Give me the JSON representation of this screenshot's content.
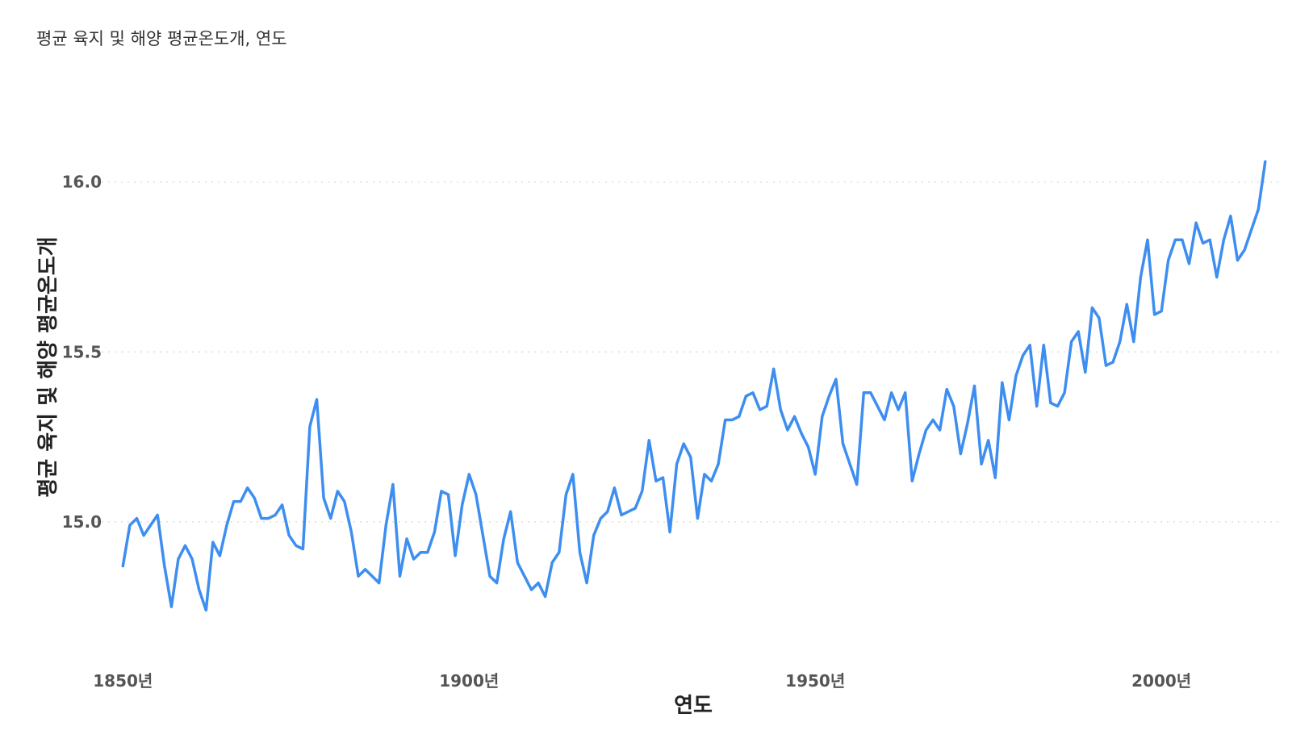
{
  "chart_data": {
    "type": "line",
    "title": "평균 육지 및 해양 평균온도개, 연도",
    "xlabel": "연도",
    "ylabel": "평균 육지 및 해양 평균온도개",
    "x_ticks": [
      {
        "value": 1850,
        "label": "1850년"
      },
      {
        "value": 1900,
        "label": "1900년"
      },
      {
        "value": 1950,
        "label": "1950년"
      },
      {
        "value": 2000,
        "label": "2000년"
      }
    ],
    "y_ticks": [
      {
        "value": 15.0,
        "label": "15.0"
      },
      {
        "value": 15.5,
        "label": "15.5"
      },
      {
        "value": 16.0,
        "label": "16.0"
      }
    ],
    "xlim": [
      1846,
      2017
    ],
    "ylim": [
      14.66,
      16.27
    ],
    "grid": "horizontal dotted",
    "line_color": "#3d8ef0",
    "series": [
      {
        "x": [
          1850,
          1851,
          1852,
          1853,
          1854,
          1855,
          1856,
          1857,
          1858,
          1859,
          1860,
          1861,
          1862,
          1863,
          1864,
          1865,
          1866,
          1867,
          1868,
          1869,
          1870,
          1871,
          1872,
          1873,
          1874,
          1875,
          1876,
          1877,
          1878,
          1879,
          1880,
          1881,
          1882,
          1883,
          1884,
          1885,
          1886,
          1887,
          1888,
          1889,
          1890,
          1891,
          1892,
          1893,
          1894,
          1895,
          1896,
          1897,
          1898,
          1899,
          1900,
          1901,
          1902,
          1903,
          1904,
          1905,
          1906,
          1907,
          1908,
          1909,
          1910,
          1911,
          1912,
          1913,
          1914,
          1915,
          1916,
          1917,
          1918,
          1919,
          1920,
          1921,
          1922,
          1923,
          1924,
          1925,
          1926,
          1927,
          1928,
          1929,
          1930,
          1931,
          1932,
          1933,
          1934,
          1935,
          1936,
          1937,
          1938,
          1939,
          1940,
          1941,
          1942,
          1943,
          1944,
          1945,
          1946,
          1947,
          1948,
          1949,
          1950,
          1951,
          1952,
          1953,
          1954,
          1955,
          1956,
          1957,
          1958,
          1959,
          1960,
          1961,
          1962,
          1963,
          1964,
          1965,
          1966,
          1967,
          1968,
          1969,
          1970,
          1971,
          1972,
          1973,
          1974,
          1975,
          1976,
          1977,
          1978,
          1979,
          1980,
          1981,
          1982,
          1983,
          1984,
          1985,
          1986,
          1987,
          1988,
          1989,
          1990,
          1991,
          1992,
          1993,
          1994,
          1995,
          1996,
          1997,
          1998,
          1999,
          2000,
          2001,
          2002,
          2003,
          2004,
          2005,
          2006,
          2007,
          2008,
          2009,
          2010,
          2011,
          2012,
          2013,
          2014,
          2015
        ],
        "values": [
          14.87,
          14.99,
          15.01,
          14.96,
          14.99,
          15.02,
          14.87,
          14.75,
          14.89,
          14.93,
          14.89,
          14.8,
          14.74,
          14.94,
          14.9,
          14.99,
          15.06,
          15.06,
          15.1,
          15.07,
          15.01,
          15.01,
          15.02,
          15.05,
          14.96,
          14.93,
          14.92,
          15.28,
          15.36,
          15.07,
          15.01,
          15.09,
          15.06,
          14.97,
          14.84,
          14.86,
          14.84,
          14.82,
          14.99,
          15.11,
          14.84,
          14.95,
          14.89,
          14.91,
          14.91,
          14.97,
          15.09,
          15.08,
          14.9,
          15.05,
          15.14,
          15.08,
          14.96,
          14.84,
          14.82,
          14.95,
          15.03,
          14.88,
          14.84,
          14.8,
          14.82,
          14.78,
          14.88,
          14.91,
          15.08,
          15.14,
          14.91,
          14.82,
          14.96,
          15.01,
          15.03,
          15.1,
          15.02,
          15.03,
          15.04,
          15.09,
          15.24,
          15.12,
          15.13,
          14.97,
          15.17,
          15.23,
          15.19,
          15.01,
          15.14,
          15.12,
          15.17,
          15.3,
          15.3,
          15.31,
          15.37,
          15.38,
          15.33,
          15.34,
          15.45,
          15.33,
          15.27,
          15.31,
          15.26,
          15.22,
          15.14,
          15.31,
          15.37,
          15.42,
          15.23,
          15.17,
          15.11,
          15.38,
          15.38,
          15.34,
          15.3,
          15.38,
          15.33,
          15.38,
          15.12,
          15.2,
          15.27,
          15.3,
          15.27,
          15.39,
          15.34,
          15.2,
          15.29,
          15.4,
          15.17,
          15.24,
          15.13,
          15.41,
          15.3,
          15.43,
          15.49,
          15.52,
          15.34,
          15.52,
          15.35,
          15.34,
          15.38,
          15.53,
          15.56,
          15.44,
          15.63,
          15.6,
          15.46,
          15.47,
          15.53,
          15.64,
          15.53,
          15.72,
          15.83,
          15.61,
          15.62,
          15.77,
          15.83,
          15.83,
          15.76,
          15.88,
          15.82,
          15.83,
          15.72,
          15.83,
          15.9,
          15.77,
          15.8,
          15.86,
          15.92,
          16.06
        ]
      }
    ]
  }
}
